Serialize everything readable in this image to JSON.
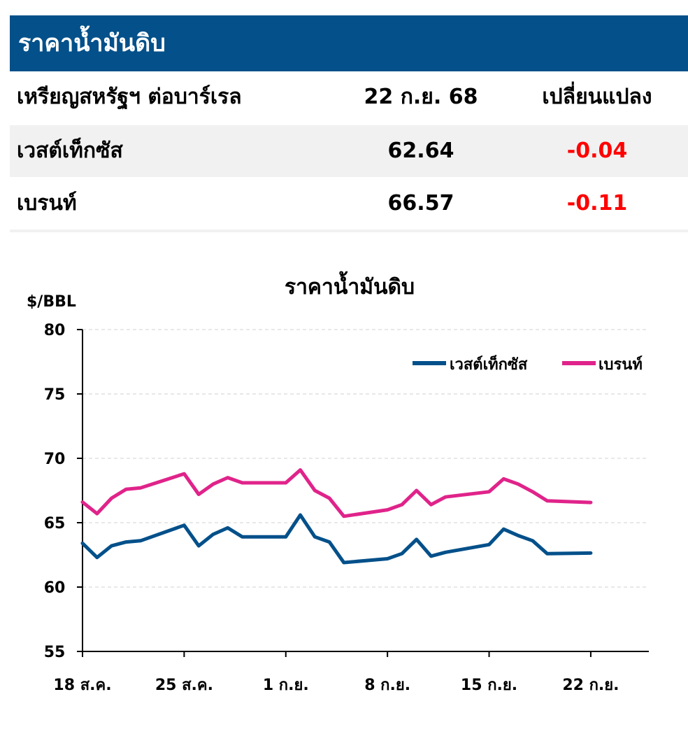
{
  "header": {
    "title": "ราคาน้ำมันดิบ"
  },
  "table": {
    "columns": [
      "เหรียญสหรัฐฯ ต่อบาร์เรล",
      "22 ก.ย. 68",
      "เปลี่ยนแปลง"
    ],
    "rows": [
      {
        "name": "เวสต์เท็กซัส",
        "price": "62.64",
        "change": "-0.04"
      },
      {
        "name": "เบรนท์",
        "price": "66.57",
        "change": "-0.11"
      }
    ]
  },
  "colors": {
    "header_bg": "#03508a",
    "wti": "#03508a",
    "brent": "#e0238a",
    "negative": "#ff0000"
  },
  "chart_data": {
    "type": "line",
    "title": "ราคาน้ำมันดิบ",
    "ylabel": "$/BBL",
    "ylim": [
      55,
      80
    ],
    "yticks": [
      80,
      75,
      70,
      65,
      60,
      55
    ],
    "x_tick_labels": [
      "18 ส.ค.",
      "25 ส.ค.",
      "1 ก.ย.",
      "8 ก.ย.",
      "15 ก.ย.",
      "22 ก.ย."
    ],
    "x_tick_days": [
      0,
      7,
      14,
      21,
      28,
      35
    ],
    "xlim": [
      0,
      39
    ],
    "grid": true,
    "legend": "top-right",
    "series": [
      {
        "name": "เวสต์เท็กซัส",
        "color": "#03508a",
        "x": [
          0,
          1,
          2,
          3,
          4,
          7,
          8,
          9,
          10,
          11,
          14,
          15,
          16,
          17,
          18,
          21,
          22,
          23,
          24,
          25,
          28,
          29,
          30,
          31,
          32,
          35
        ],
        "values": [
          63.4,
          62.3,
          63.2,
          63.5,
          63.6,
          64.8,
          63.2,
          64.1,
          64.6,
          63.9,
          63.9,
          65.6,
          63.9,
          63.5,
          61.9,
          62.2,
          62.6,
          63.7,
          62.4,
          62.7,
          63.3,
          64.5,
          64.0,
          63.6,
          62.6,
          62.64
        ]
      },
      {
        "name": "เบรนท์",
        "color": "#e0238a",
        "x": [
          0,
          1,
          2,
          3,
          4,
          7,
          8,
          9,
          10,
          11,
          14,
          15,
          16,
          17,
          18,
          21,
          22,
          23,
          24,
          25,
          28,
          29,
          30,
          31,
          32,
          35
        ],
        "values": [
          66.6,
          65.7,
          66.9,
          67.6,
          67.7,
          68.8,
          67.2,
          68.0,
          68.5,
          68.1,
          68.1,
          69.1,
          67.5,
          66.9,
          65.5,
          66.0,
          66.4,
          67.5,
          66.4,
          67.0,
          67.4,
          68.4,
          68.0,
          67.4,
          66.7,
          66.57
        ]
      }
    ]
  }
}
